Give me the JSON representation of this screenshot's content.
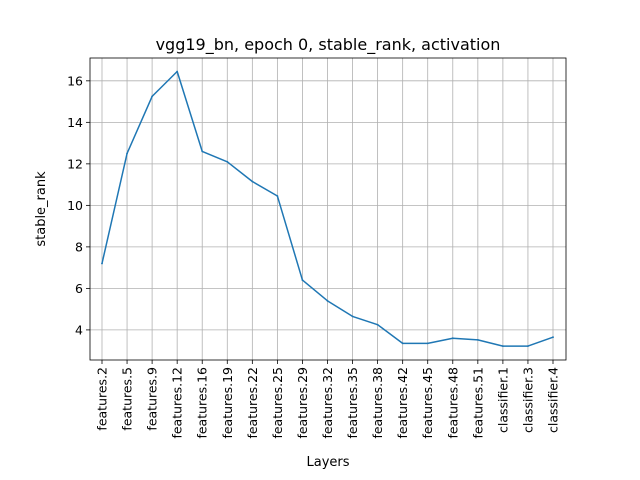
{
  "chart_data": {
    "type": "line",
    "title": "vgg19_bn, epoch 0, stable_rank, activation",
    "xlabel": "Layers",
    "ylabel": "stable_rank",
    "categories": [
      "features.2",
      "features.5",
      "features.9",
      "features.12",
      "features.16",
      "features.19",
      "features.22",
      "features.25",
      "features.29",
      "features.32",
      "features.35",
      "features.38",
      "features.42",
      "features.45",
      "features.48",
      "features.51",
      "classifier.1",
      "classifier.3",
      "classifier.4"
    ],
    "series": [
      {
        "values": [
          7.2,
          12.5,
          15.25,
          16.45,
          12.6,
          12.1,
          11.15,
          10.45,
          6.4,
          5.4,
          4.65,
          4.25,
          3.35,
          3.35,
          3.6,
          3.52,
          3.22,
          3.22,
          3.65
        ],
        "color": "#1f77b4"
      }
    ],
    "yticks": [
      4,
      6,
      8,
      10,
      12,
      14,
      16
    ],
    "ylim": [
      2.55,
      17.1
    ],
    "grid": true
  }
}
